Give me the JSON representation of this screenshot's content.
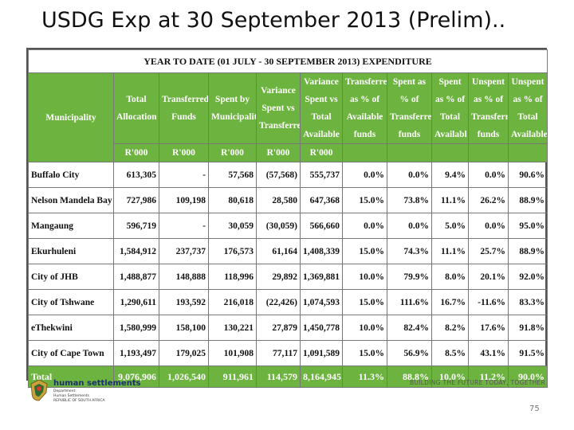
{
  "slide": {
    "title": "USDG Exp at 30 September 2013 (Prelim)..",
    "page_number": "75"
  },
  "table": {
    "caption": "YEAR TO DATE (01 JULY - 30 SEPTEMBER 2013) EXPENDITURE",
    "headers": [
      "Municipality",
      "Total Allocation",
      "Transferred Funds",
      "Spent by Municipality",
      "Variance Spent vs Transferred",
      "Variance Spent vs Total Available",
      "Transferred as % of Available funds",
      "Spent as % of Transferred funds",
      "Spent as % of Total Availabl",
      "Unspent as % of Transferred funds",
      "Unspent as % of Total Available"
    ],
    "units": [
      "",
      "R'000",
      "R'000",
      "R'000",
      "R'000",
      "R'000",
      "",
      "",
      "",
      "",
      ""
    ],
    "rows": [
      [
        "Buffalo City",
        "613,305",
        "-",
        "57,568",
        "(57,568)",
        "555,737",
        "0.0%",
        "0.0%",
        "9.4%",
        "0.0%",
        "90.6%"
      ],
      [
        "Nelson Mandela Bay",
        "727,986",
        "109,198",
        "80,618",
        "28,580",
        "647,368",
        "15.0%",
        "73.8%",
        "11.1%",
        "26.2%",
        "88.9%"
      ],
      [
        "Mangaung",
        "596,719",
        "-",
        "30,059",
        "(30,059)",
        "566,660",
        "0.0%",
        "0.0%",
        "5.0%",
        "0.0%",
        "95.0%"
      ],
      [
        "Ekurhuleni",
        "1,584,912",
        "237,737",
        "176,573",
        "61,164",
        "1,408,339",
        "15.0%",
        "74.3%",
        "11.1%",
        "25.7%",
        "88.9%"
      ],
      [
        "City of JHB",
        "1,488,877",
        "148,888",
        "118,996",
        "29,892",
        "1,369,881",
        "10.0%",
        "79.9%",
        "8.0%",
        "20.1%",
        "92.0%"
      ],
      [
        "City of Tshwane",
        "1,290,611",
        "193,592",
        "216,018",
        "(22,426)",
        "1,074,593",
        "15.0%",
        "111.6%",
        "16.7%",
        "-11.6%",
        "83.3%"
      ],
      [
        "eThekwini",
        "1,580,999",
        "158,100",
        "130,221",
        "27,879",
        "1,450,778",
        "10.0%",
        "82.4%",
        "8.2%",
        "17.6%",
        "91.8%"
      ],
      [
        "City of Cape Town",
        "1,193,497",
        "179,025",
        "101,908",
        "77,117",
        "1,091,589",
        "15.0%",
        "56.9%",
        "8.5%",
        "43.1%",
        "91.5%"
      ]
    ],
    "total": [
      "Total",
      "9,076,906",
      "1,026,540",
      "911,961",
      "114,579",
      "8,164,945",
      "11.3%",
      "88.8%",
      "10.0%",
      "11.2%",
      "90.0%"
    ]
  },
  "footer": {
    "org_name": "human settlements",
    "dept_lines": [
      "Department:",
      "Human Settlements",
      "REPUBLIC OF SOUTH AFRICA"
    ],
    "tagline": "BUILDING THE FUTURE TODAY, TOGETHER"
  },
  "colors": {
    "header_green": "#6db33f",
    "brand_blue": "#1b2f6e"
  }
}
